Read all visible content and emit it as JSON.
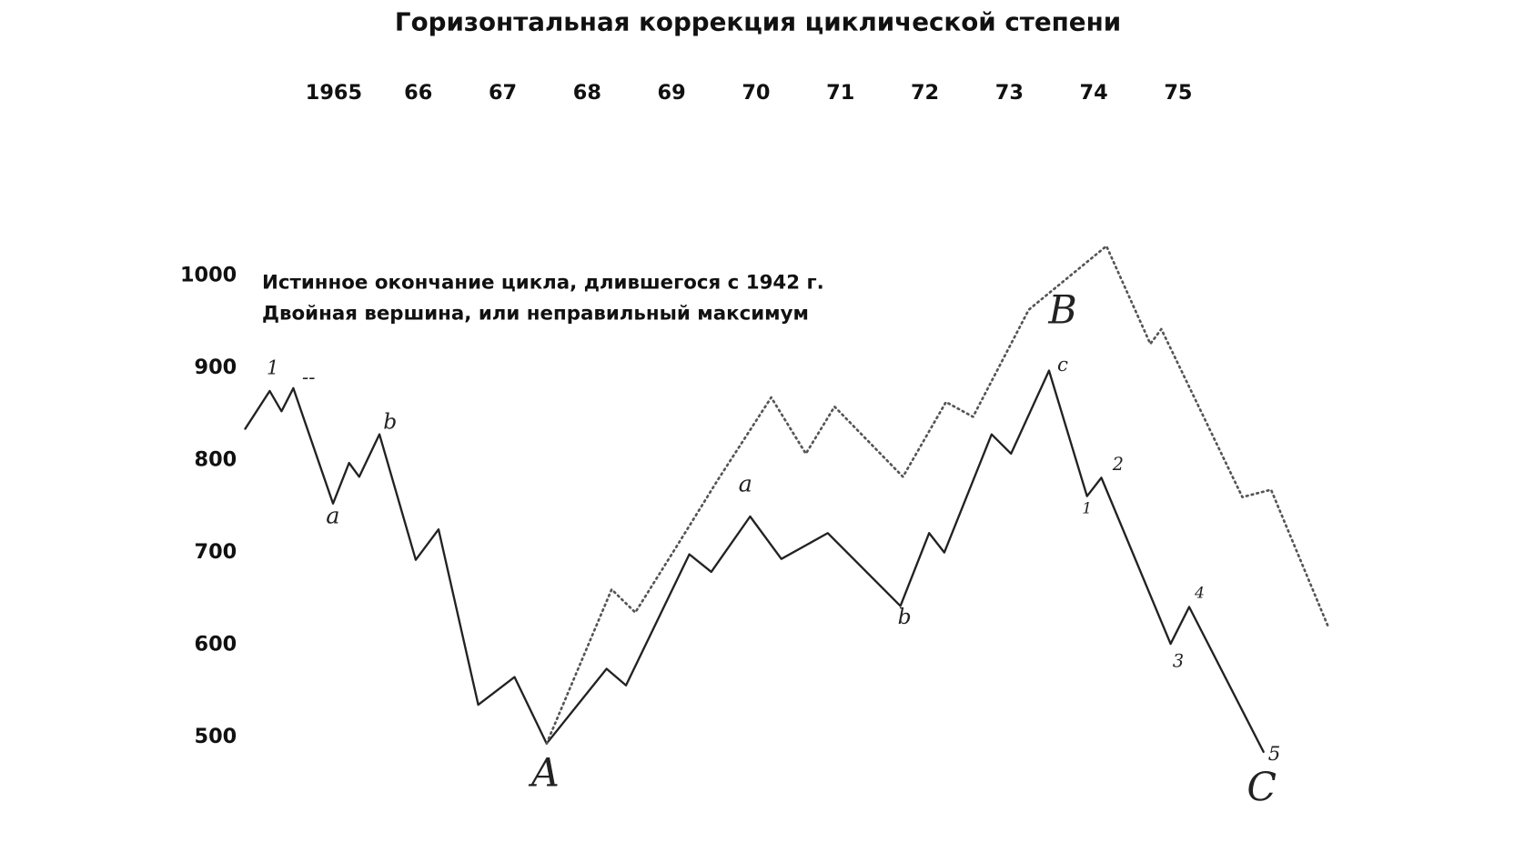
{
  "chart_data": {
    "type": "line",
    "title": "Горизонтальная коррекция циклической степени",
    "annotations": [
      "Истинное окончание цикла, длившегося с 1942 г.",
      "Двойная вершина, или неправильный максимум"
    ],
    "wave_labels": [
      "1",
      "--",
      "a",
      "b",
      "A",
      "a",
      "b",
      "B",
      "c",
      "1",
      "2",
      "3",
      "4",
      "5",
      "C"
    ],
    "xlim": [
      1963.9,
      1976.9
    ],
    "xticks": [
      1965,
      {
        "value": 1966,
        "label": "66"
      },
      {
        "value": 1967,
        "label": "67"
      },
      {
        "value": 1968,
        "label": "68"
      },
      {
        "value": 1969,
        "label": "69"
      },
      {
        "value": 1970,
        "label": "70"
      },
      {
        "value": 1971,
        "label": "71"
      },
      {
        "value": 1972,
        "label": "72"
      },
      {
        "value": 1973,
        "label": "73"
      },
      {
        "value": 1974,
        "label": "74"
      },
      {
        "value": 1975,
        "label": "75"
      }
    ],
    "ylim": [
      420,
      1045
    ],
    "yticks": [
      1000,
      900,
      800,
      700,
      600,
      500
    ],
    "grid": false,
    "series": [
      {
        "color": "#222222",
        "style": "solid",
        "x": [
          1963.95,
          1964.24,
          1964.38,
          1964.52,
          1964.99,
          1965.18,
          1965.3,
          1965.54,
          1965.97,
          1966.24,
          1966.71,
          1967.14,
          1967.52,
          1968.23,
          1968.46,
          1969.21,
          1969.47,
          1969.93,
          1970.3,
          1970.85,
          1971.71,
          1972.05,
          1972.23,
          1972.79,
          1973.02,
          1973.47,
          1973.92,
          1974.09,
          1974.91,
          1975.13,
          1976.01
        ],
        "values": [
          834,
          875,
          853,
          878,
          753,
          797,
          782,
          828,
          692,
          725,
          535,
          565,
          493,
          574,
          556,
          698,
          679,
          739,
          693,
          721,
          642,
          721,
          700,
          828,
          807,
          897,
          761,
          781,
          601,
          641,
          484
        ]
      },
      {
        "color": "#555555",
        "style": "dotted",
        "x": [
          1967.52,
          1968.29,
          1968.57,
          1969.09,
          1969.55,
          1970.18,
          1970.59,
          1970.93,
          1971.74,
          1972.25,
          1972.57,
          1973.23,
          1974.15,
          1974.67,
          1974.8,
          1975.76,
          1976.1,
          1976.77
        ],
        "values": [
          493,
          660,
          635,
          711,
          779,
          868,
          807,
          858,
          782,
          863,
          847,
          963,
          1032,
          926,
          942,
          760,
          768,
          621
        ]
      }
    ]
  }
}
